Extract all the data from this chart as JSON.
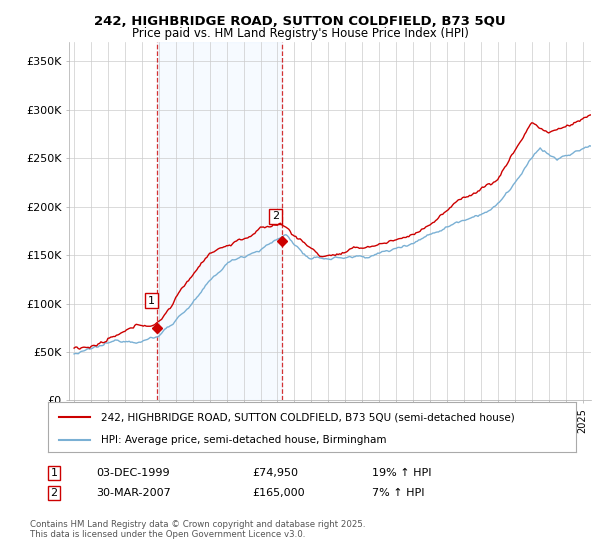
{
  "title_line1": "242, HIGHBRIDGE ROAD, SUTTON COLDFIELD, B73 5QU",
  "title_line2": "Price paid vs. HM Land Registry's House Price Index (HPI)",
  "ylabel_ticks": [
    "£0",
    "£50K",
    "£100K",
    "£150K",
    "£200K",
    "£250K",
    "£300K",
    "£350K"
  ],
  "ytick_values": [
    0,
    50000,
    100000,
    150000,
    200000,
    250000,
    300000,
    350000
  ],
  "ylim": [
    0,
    370000
  ],
  "xlim_start": 1994.7,
  "xlim_end": 2025.5,
  "transaction1_date": "03-DEC-1999",
  "transaction1_price": 74950,
  "transaction1_hpi": "19% ↑ HPI",
  "transaction1_x": 1999.92,
  "transaction2_date": "30-MAR-2007",
  "transaction2_price": 165000,
  "transaction2_hpi": "7% ↑ HPI",
  "transaction2_x": 2007.25,
  "legend_label1": "242, HIGHBRIDGE ROAD, SUTTON COLDFIELD, B73 5QU (semi-detached house)",
  "legend_label2": "HPI: Average price, semi-detached house, Birmingham",
  "line1_color": "#cc0000",
  "line2_color": "#7ab0d4",
  "shade_color": "#ddeeff",
  "footnote": "Contains HM Land Registry data © Crown copyright and database right 2025.\nThis data is licensed under the Open Government Licence v3.0.",
  "marker_color": "#cc0000",
  "vline_color": "#cc0000",
  "background_color": "#ffffff",
  "plot_bg_color": "#ffffff",
  "grid_color": "#cccccc"
}
